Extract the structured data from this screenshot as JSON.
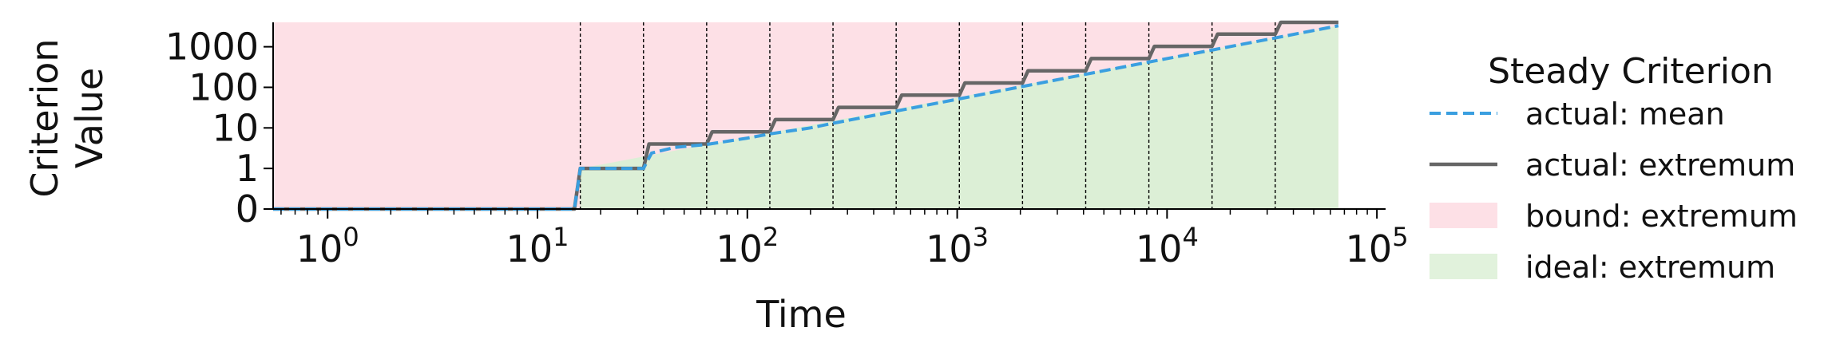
{
  "chart_data": {
    "type": "line",
    "xlabel": "Time",
    "ylabel_lines": [
      "Criterion",
      "Value"
    ],
    "x_scale": "log",
    "y_scale": "symlog",
    "xlim": [
      0.55,
      110000
    ],
    "ylim": [
      0,
      4000
    ],
    "x_ticks": [
      {
        "value": 1,
        "base": "10",
        "exp": "0"
      },
      {
        "value": 10,
        "base": "10",
        "exp": "1"
      },
      {
        "value": 100,
        "base": "10",
        "exp": "2"
      },
      {
        "value": 1000,
        "base": "10",
        "exp": "3"
      },
      {
        "value": 10000,
        "base": "10",
        "exp": "4"
      },
      {
        "value": 100000,
        "base": "10",
        "exp": "5"
      }
    ],
    "y_ticks": [
      {
        "value": 0,
        "label": "0"
      },
      {
        "value": 1,
        "label": "1"
      },
      {
        "value": 10,
        "label": "10"
      },
      {
        "value": 100,
        "label": "100"
      },
      {
        "value": 1000,
        "label": "1000"
      }
    ],
    "vlines": [
      16,
      32,
      64,
      128,
      256,
      512,
      1024,
      2048,
      4096,
      8192,
      16384,
      32768
    ],
    "bound_region": {
      "x_range": [
        0.55,
        65536
      ],
      "upper": 4000
    },
    "ideal_region": [
      [
        16,
        1
      ],
      [
        65536,
        3300
      ]
    ],
    "series": [
      {
        "name": "actual: mean",
        "points": [
          [
            0.55,
            0
          ],
          [
            15,
            0
          ],
          [
            16,
            1
          ],
          [
            32,
            1
          ],
          [
            35,
            2.4
          ],
          [
            45,
            3.3
          ],
          [
            64,
            3.9
          ],
          [
            100,
            5.6
          ],
          [
            128,
            7.1
          ],
          [
            200,
            10
          ],
          [
            256,
            13
          ],
          [
            512,
            26
          ],
          [
            1024,
            52
          ],
          [
            2048,
            105
          ],
          [
            4096,
            210
          ],
          [
            8192,
            420
          ],
          [
            16384,
            830
          ],
          [
            32768,
            1650
          ],
          [
            65536,
            3300
          ]
        ]
      },
      {
        "name": "actual: extremum",
        "points": [
          [
            0.55,
            0
          ],
          [
            15,
            0
          ],
          [
            16,
            1
          ],
          [
            32,
            1
          ],
          [
            34,
            4
          ],
          [
            64,
            4
          ],
          [
            68,
            8
          ],
          [
            128,
            8
          ],
          [
            136,
            16
          ],
          [
            256,
            16
          ],
          [
            272,
            32
          ],
          [
            512,
            32
          ],
          [
            544,
            64
          ],
          [
            1024,
            64
          ],
          [
            1088,
            128
          ],
          [
            2048,
            128
          ],
          [
            2176,
            256
          ],
          [
            4096,
            256
          ],
          [
            4352,
            512
          ],
          [
            8192,
            512
          ],
          [
            8704,
            1024
          ],
          [
            16384,
            1024
          ],
          [
            17408,
            2048
          ],
          [
            32768,
            2048
          ],
          [
            34816,
            4000
          ],
          [
            65536,
            4000
          ]
        ]
      }
    ],
    "legend": {
      "title": "Steady Criterion",
      "position": "right",
      "entries": [
        {
          "label": "actual: mean",
          "style": "dashed-line",
          "color": "#3a9fe0"
        },
        {
          "label": "actual: extremum",
          "style": "solid-line",
          "color": "#666666"
        },
        {
          "label": "bound: extremum",
          "style": "patch",
          "color": "#fde0e6"
        },
        {
          "label": "ideal: extremum",
          "style": "patch",
          "color": "#e1f2dc"
        }
      ]
    },
    "colors": {
      "bound_fill": "#fde0e6",
      "ideal_fill": "#dcefd6",
      "mean_line": "#3a9fe0",
      "extremum_line": "#666666",
      "vline": "#000000"
    }
  }
}
